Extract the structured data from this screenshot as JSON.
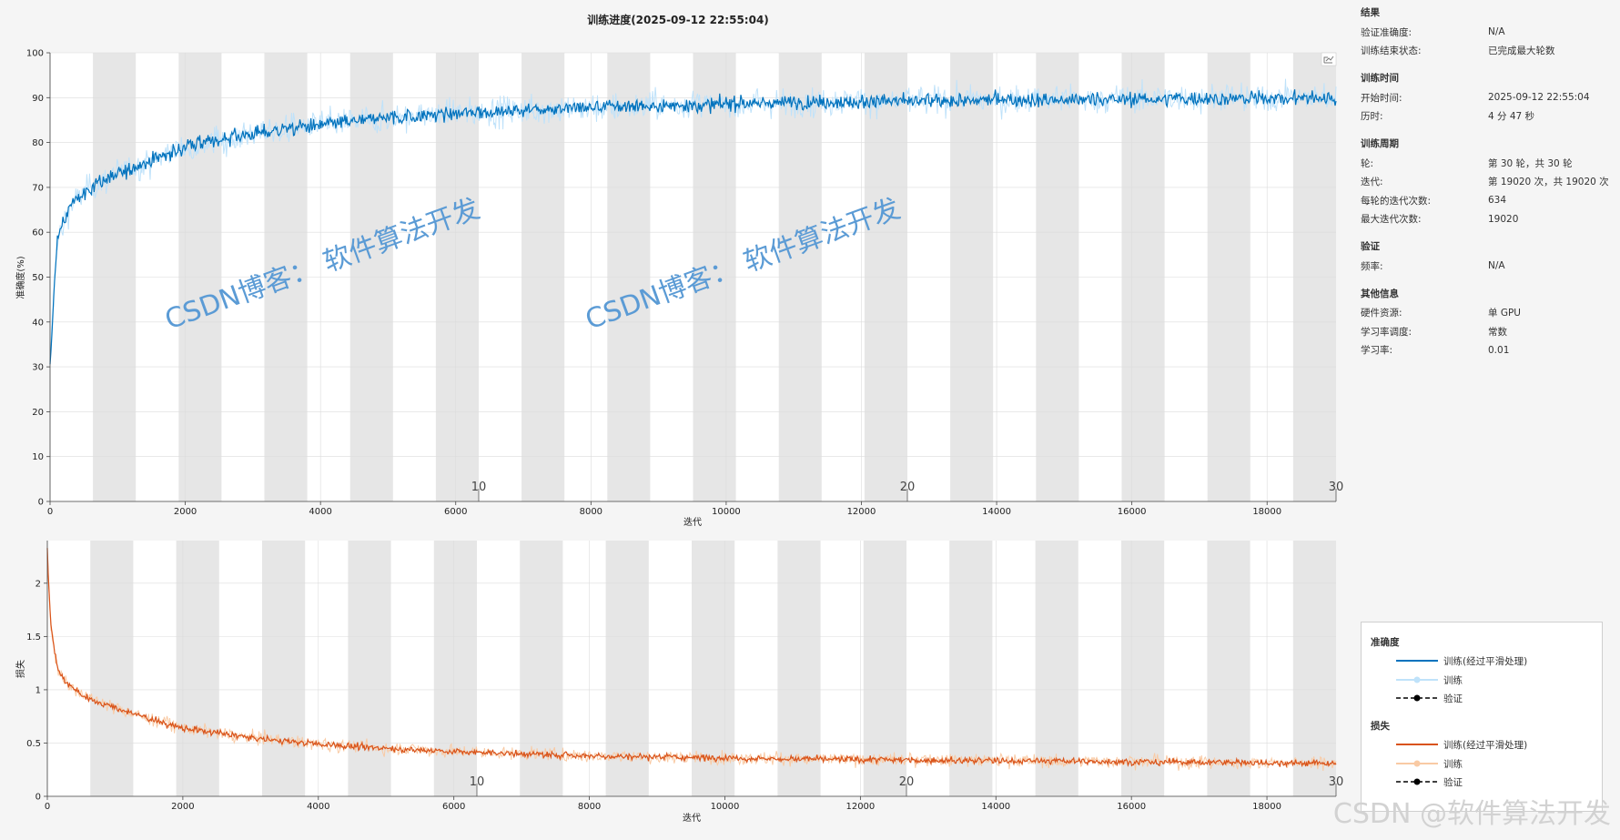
{
  "title": "训练进度(2025-09-12 22:55:04)",
  "watermark_text": "CSDN博客： 软件算法开发",
  "footer_watermark": "CSDN @软件算法开发",
  "colors": {
    "accuracy_smoothed": "#0072bd",
    "accuracy_raw": "#bfe2fa",
    "loss_smoothed": "#d95319",
    "loss_raw": "#f9caa4",
    "epoch_band": "#e6e6e6",
    "background": "#ffffff"
  },
  "info_panel": {
    "sections": [
      {
        "title": "结果",
        "rows": [
          {
            "k": "验证准确度:",
            "v": "N/A"
          },
          {
            "k": "训练结束状态:",
            "v": "已完成最大轮数"
          }
        ]
      },
      {
        "title": "训练时间",
        "rows": [
          {
            "k": "开始时间:",
            "v": "2025-09-12 22:55:04"
          },
          {
            "k": "历时:",
            "v": "4 分 47 秒"
          }
        ]
      },
      {
        "title": "训练周期",
        "rows": [
          {
            "k": "轮:",
            "v": "第 30 轮，共 30 轮"
          },
          {
            "k": "迭代:",
            "v": "第 19020 次，共 19020 次"
          },
          {
            "k": "每轮的迭代次数:",
            "v": "634"
          },
          {
            "k": "最大迭代次数:",
            "v": "19020"
          }
        ]
      },
      {
        "title": "验证",
        "rows": [
          {
            "k": "频率:",
            "v": "N/A"
          }
        ]
      },
      {
        "title": "其他信息",
        "rows": [
          {
            "k": "硬件资源:",
            "v": "单 GPU"
          },
          {
            "k": "学习率调度:",
            "v": "常数"
          },
          {
            "k": "学习率:",
            "v": "0.01"
          }
        ]
      }
    ]
  },
  "legend": {
    "accuracy_title": "准确度",
    "loss_title": "损失",
    "smoothed_label": "训练(经过平滑处理)",
    "raw_label": "训练",
    "val_label": "验证"
  },
  "chart_data": [
    {
      "type": "line",
      "title": "训练进度(2025-09-12 22:55:04)",
      "xlabel": "迭代",
      "ylabel": "准确度(%)",
      "xlim": [
        0,
        19020
      ],
      "ylim": [
        0,
        100
      ],
      "xticks": [
        0,
        2000,
        4000,
        6000,
        8000,
        10000,
        12000,
        14000,
        16000,
        18000
      ],
      "yticks": [
        0,
        10,
        20,
        30,
        40,
        50,
        60,
        70,
        80,
        90,
        100
      ],
      "epoch_labels": [
        "10",
        "20",
        "30"
      ],
      "epochs": 30,
      "iterations_per_epoch": 634,
      "series": [
        {
          "name": "训练(经过平滑处理)",
          "x": [
            0,
            100,
            300,
            600,
            1000,
            1500,
            2000,
            3000,
            4000,
            5000,
            6000,
            7000,
            8000,
            9000,
            10000,
            11000,
            12000,
            13000,
            14000,
            15000,
            16000,
            17000,
            18000,
            19020
          ],
          "y": [
            30,
            58,
            66,
            70,
            73,
            76,
            79,
            82,
            84,
            85.5,
            86.5,
            87.2,
            87.8,
            88.2,
            88.6,
            88.9,
            89.1,
            89.3,
            89.5,
            89.6,
            89.7,
            89.8,
            89.9,
            90
          ]
        },
        {
          "name": "训练",
          "x": [
            0,
            100,
            300,
            600,
            1000,
            1500,
            2000,
            3000,
            4000,
            5000,
            6000,
            7000,
            8000,
            9000,
            10000,
            11000,
            12000,
            13000,
            14000,
            15000,
            16000,
            17000,
            18000,
            19020
          ],
          "y": [
            30,
            58,
            66,
            70,
            73,
            76,
            79,
            82,
            84,
            85.5,
            86.5,
            87.2,
            87.8,
            88.2,
            88.6,
            88.9,
            89.1,
            89.3,
            89.5,
            89.6,
            89.7,
            89.8,
            89.9,
            90
          ]
        }
      ]
    },
    {
      "type": "line",
      "xlabel": "迭代",
      "ylabel": "损失",
      "xlim": [
        0,
        19020
      ],
      "ylim": [
        0,
        2.4
      ],
      "xticks": [
        0,
        2000,
        4000,
        6000,
        8000,
        10000,
        12000,
        14000,
        16000,
        18000
      ],
      "yticks": [
        0,
        0.5,
        1,
        1.5,
        2
      ],
      "ytick_labels": [
        "0",
        "0.5",
        "1",
        "1.5",
        "2"
      ],
      "epoch_labels": [
        "10",
        "20",
        "30"
      ],
      "epochs": 30,
      "iterations_per_epoch": 634,
      "series": [
        {
          "name": "训练(经过平滑处理)",
          "x": [
            0,
            50,
            150,
            300,
            600,
            1000,
            1500,
            2000,
            3000,
            4000,
            5000,
            6000,
            7000,
            8000,
            9000,
            10000,
            11000,
            12000,
            13000,
            14000,
            15000,
            16000,
            17000,
            18000,
            19020
          ],
          "y": [
            2.3,
            1.6,
            1.2,
            1.05,
            0.92,
            0.83,
            0.73,
            0.64,
            0.55,
            0.49,
            0.45,
            0.42,
            0.4,
            0.38,
            0.37,
            0.36,
            0.35,
            0.345,
            0.34,
            0.335,
            0.33,
            0.325,
            0.32,
            0.315,
            0.31
          ]
        },
        {
          "name": "训练",
          "x": [
            0,
            50,
            150,
            300,
            600,
            1000,
            1500,
            2000,
            3000,
            4000,
            5000,
            6000,
            7000,
            8000,
            9000,
            10000,
            11000,
            12000,
            13000,
            14000,
            15000,
            16000,
            17000,
            18000,
            19020
          ],
          "y": [
            2.3,
            1.6,
            1.2,
            1.05,
            0.92,
            0.83,
            0.73,
            0.64,
            0.55,
            0.49,
            0.45,
            0.42,
            0.4,
            0.38,
            0.37,
            0.36,
            0.35,
            0.345,
            0.34,
            0.335,
            0.33,
            0.325,
            0.32,
            0.315,
            0.31
          ]
        }
      ]
    }
  ]
}
